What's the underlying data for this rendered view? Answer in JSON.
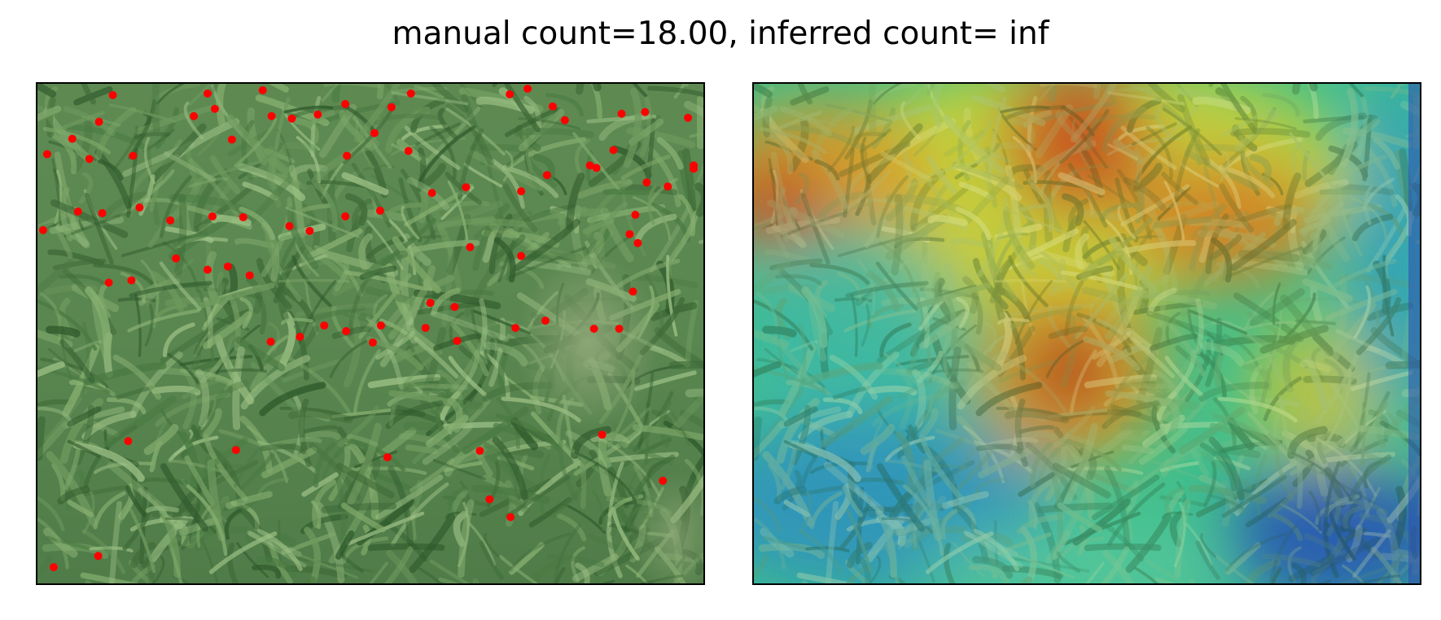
{
  "figure": {
    "title": "manual count=18.00, inferred count= inf"
  },
  "panels": [
    {
      "id": "photo",
      "content": "maize field photograph with red dot annotations",
      "marker_color": "#ff0000"
    },
    {
      "id": "heatmap",
      "content": "density heatmap overlay on maize field photograph",
      "colormap": "jet"
    }
  ],
  "colors": {
    "background": "#ffffff",
    "frame": "#000000",
    "marker": "#ff0000"
  }
}
